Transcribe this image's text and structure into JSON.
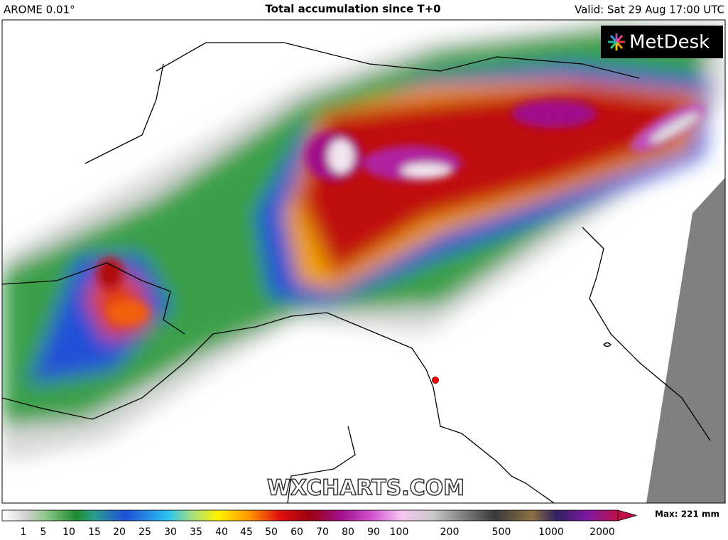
{
  "header": {
    "model": "AROME 0.01°",
    "title": "Total accumulation since T+0",
    "valid": "Valid: Sat 29 Aug 17:00 UTC"
  },
  "logo": "MetDesk",
  "watermark": "WXCHARTS.COM",
  "legend": {
    "ticks": [
      1,
      5,
      10,
      15,
      20,
      25,
      30,
      35,
      40,
      45,
      50,
      60,
      70,
      80,
      90,
      100,
      200,
      500,
      1000,
      2000
    ],
    "max": "Max: 221 mm"
  }
}
